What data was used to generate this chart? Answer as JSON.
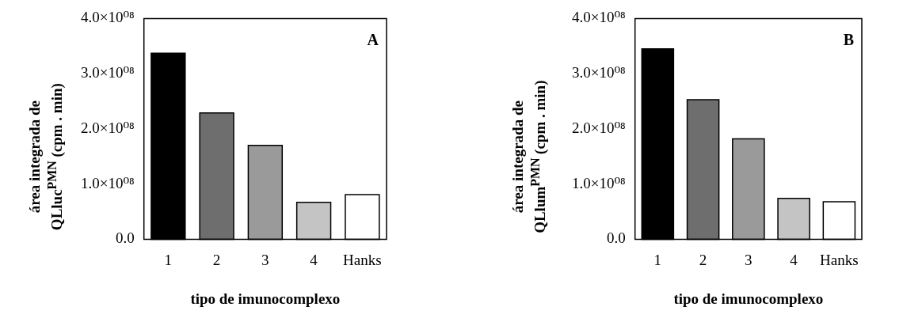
{
  "chart_data": [
    {
      "type": "bar",
      "categories": [
        "1",
        "2",
        "3",
        "4",
        "Hanks"
      ],
      "values": [
        337000000,
        229000000,
        170000000,
        67000000,
        81000000
      ],
      "colors": [
        "#000000",
        "#6e6e6e",
        "#9a9a9a",
        "#c4c4c4",
        "#ffffff"
      ],
      "ylim": [
        0,
        400000000
      ],
      "yticks": [
        {
          "value": 0,
          "label": "0.0"
        },
        {
          "value": 100000000,
          "label": "1.0×10⁰⁸"
        },
        {
          "value": 200000000,
          "label": "2.0×10⁰⁸"
        },
        {
          "value": 300000000,
          "label": "3.0×10⁰⁸"
        },
        {
          "value": 400000000,
          "label": "4.0×10⁰⁸"
        }
      ],
      "xlabel": "tipo de imunocomplexo",
      "ylabel": "área integrada de\nQLluc$^{PMN}$ (cpm . min)",
      "annotations": [
        "A"
      ],
      "grid": false,
      "legend": false
    },
    {
      "type": "bar",
      "categories": [
        "1",
        "2",
        "3",
        "4",
        "Hanks"
      ],
      "values": [
        345000000,
        253000000,
        182000000,
        74000000,
        68000000
      ],
      "colors": [
        "#000000",
        "#6e6e6e",
        "#9a9a9a",
        "#c4c4c4",
        "#ffffff"
      ],
      "ylim": [
        0,
        400000000
      ],
      "yticks": [
        {
          "value": 0,
          "label": "0.0"
        },
        {
          "value": 100000000,
          "label": "1.0×10⁰⁸"
        },
        {
          "value": 200000000,
          "label": "2.0×10⁰⁸"
        },
        {
          "value": 300000000,
          "label": "3.0×10⁰⁸"
        },
        {
          "value": 400000000,
          "label": "4.0×10⁰⁸"
        }
      ],
      "xlabel": "tipo de imunocomplexo",
      "ylabel": "área integrada de\nQLlum$^{PMN}$ (cpm . min)",
      "annotations": [
        "B"
      ],
      "grid": false,
      "legend": false
    }
  ]
}
